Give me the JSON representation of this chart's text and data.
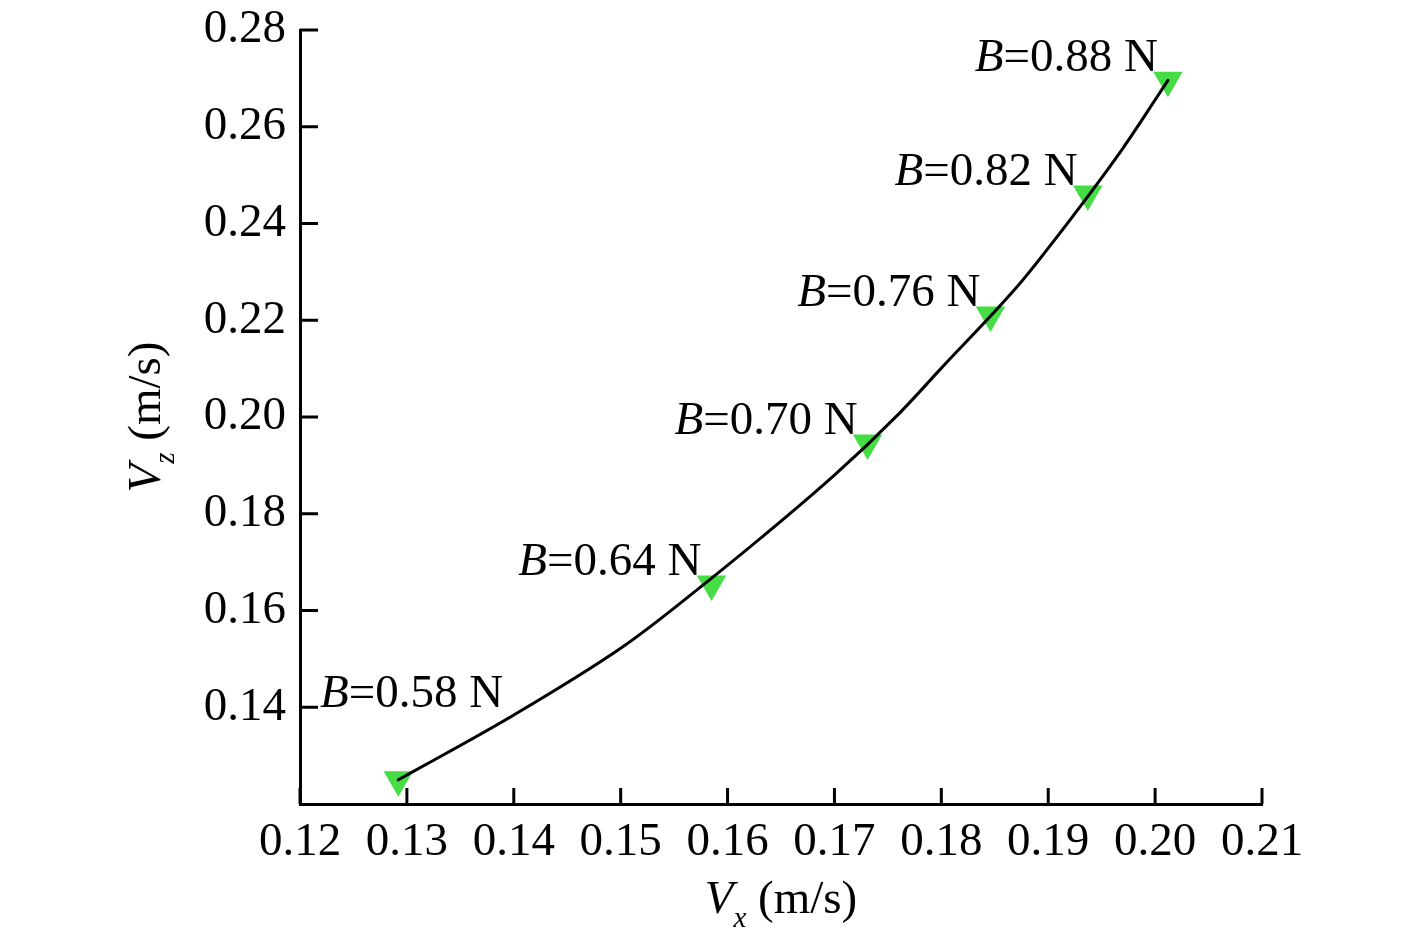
{
  "chart_data": {
    "type": "scatter",
    "xlabel": "V$_{x}$ (m/s)",
    "ylabel": "V$_{z}$ (m/s)",
    "xlim": [
      0.12,
      0.21
    ],
    "xticks": [
      0.12,
      0.13,
      0.14,
      0.15,
      0.16,
      0.17,
      0.18,
      0.19,
      {
        "value": 0.2,
        "label": "0.20"
      },
      0.21
    ],
    "ylim": [
      0.12,
      0.28
    ],
    "yticks": [
      0.14,
      0.16,
      0.18,
      {
        "value": 0.2,
        "label": "0.20"
      },
      0.22,
      0.24,
      0.26,
      0.28
    ],
    "series": [
      {
        "type": "line",
        "x": [
          0.1292,
          0.14,
          0.15,
          0.155,
          0.17,
          0.176,
          0.18,
          0.187,
          0.19,
          0.197,
          0.2012
        ],
        "values": [
          0.125,
          0.1384,
          0.1522,
          0.1605,
          0.188,
          0.2006,
          0.2101,
          0.2267,
          0.2349,
          0.2556,
          0.2696
        ],
        "color": "#000000",
        "marker": "none",
        "line_style": "solid"
      },
      {
        "type": "scatter",
        "x": [
          0.1292,
          0.1585,
          0.1731,
          0.1846,
          0.1937,
          0.2012
        ],
        "values": [
          0.125,
          0.1655,
          0.1946,
          0.2211,
          0.2461,
          0.2696
        ],
        "color": "#46dc46",
        "marker": "triangle"
      }
    ],
    "annotations": [
      {
        "text": "B=0.58 N",
        "x": 0.1292,
        "y": 0.125
      },
      {
        "text": "B=0.64 N",
        "x": 0.1585,
        "y": 0.1655
      },
      {
        "text": "B=0.70 N",
        "x": 0.1731,
        "y": 0.1946
      },
      {
        "text": "B=0.76 N",
        "x": 0.1846,
        "y": 0.2211
      },
      {
        "text": "B=0.82 N",
        "x": 0.1937,
        "y": 0.2461
      },
      {
        "text": "B=0.88 N",
        "x": 0.2012,
        "y": 0.2696
      }
    ],
    "grid": false,
    "legend": false
  }
}
